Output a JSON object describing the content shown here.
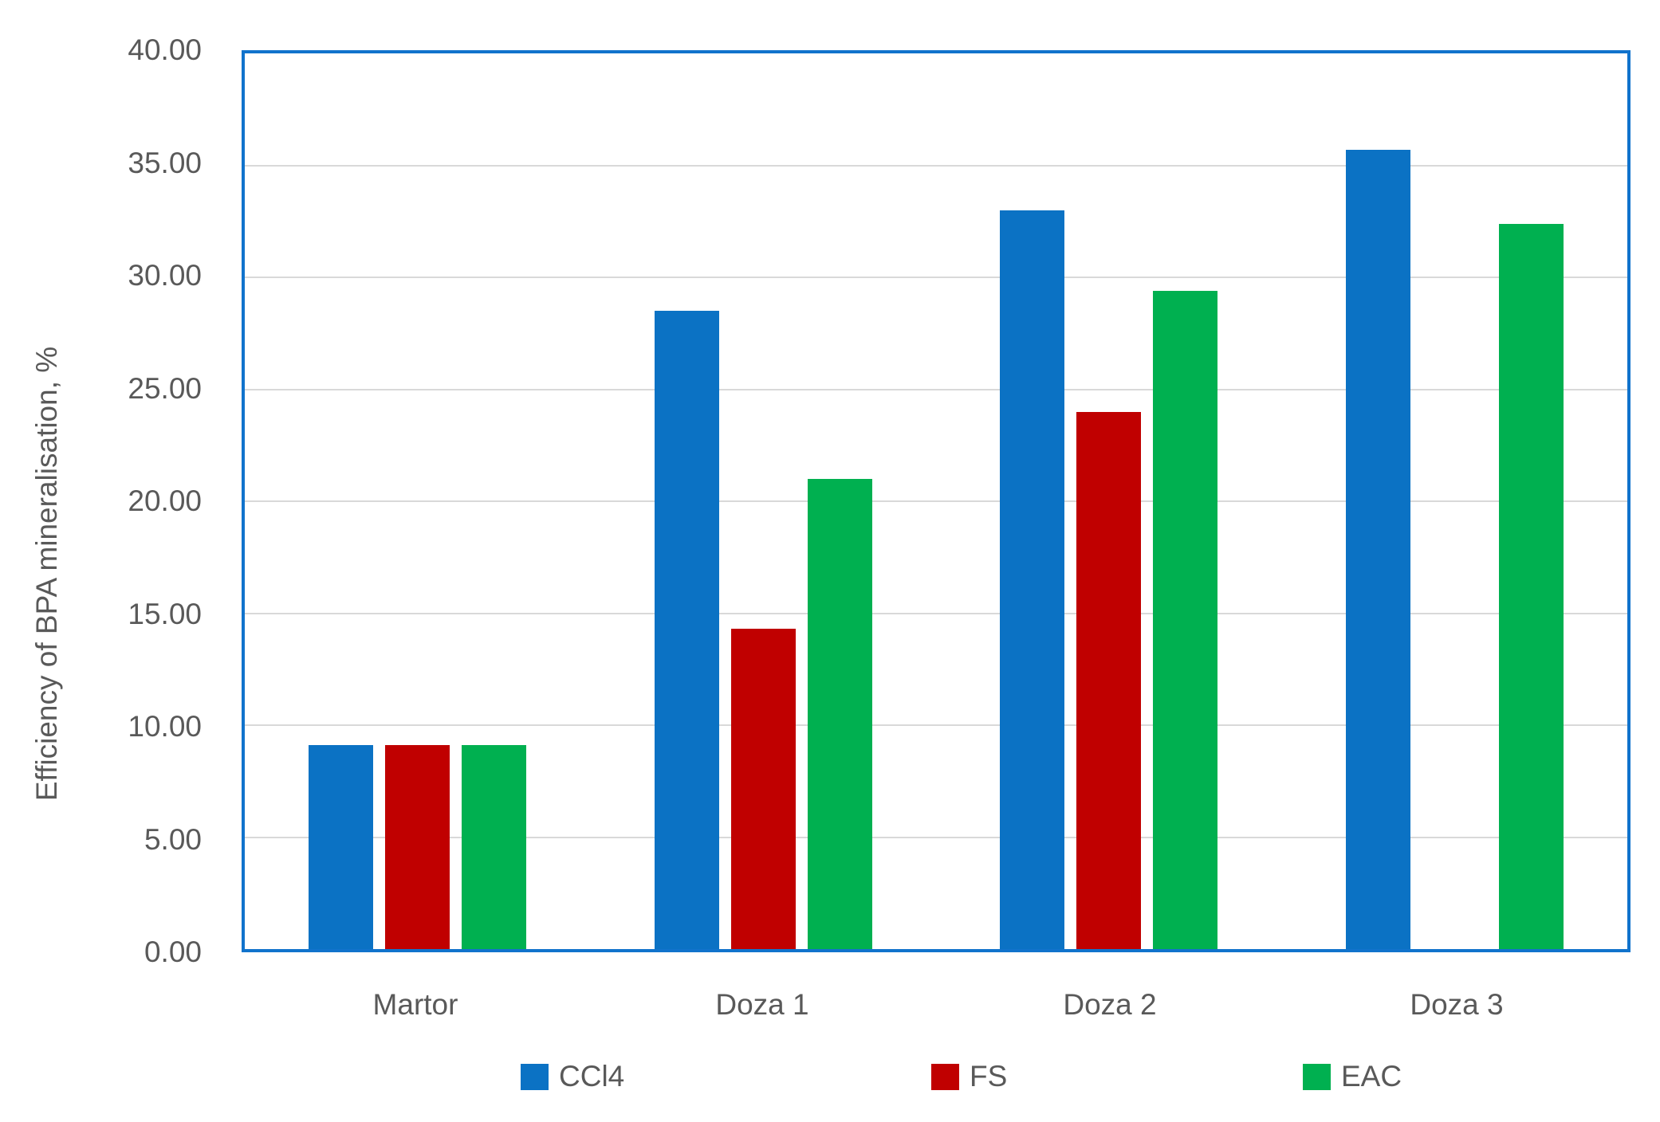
{
  "chart_data": {
    "type": "bar",
    "title": "",
    "xlabel": "",
    "ylabel": "Efficiency of BPA mineralisation, %",
    "categories": [
      "Martor",
      "Doza 1",
      "Doza 2",
      "Doza 3"
    ],
    "series": [
      {
        "name": "CCl4",
        "color": "#0B72C4",
        "values": [
          9.1,
          28.5,
          33.0,
          35.7
        ]
      },
      {
        "name": "FS",
        "color": "#C00000",
        "values": [
          9.1,
          14.3,
          24.0,
          null
        ]
      },
      {
        "name": "EAC",
        "color": "#00B050",
        "values": [
          9.1,
          21.0,
          29.4,
          32.4
        ]
      }
    ],
    "ylim": [
      0,
      40
    ],
    "ytick_step": 5,
    "ytick_labels": [
      "0.00",
      "5.00",
      "10.00",
      "15.00",
      "20.00",
      "25.00",
      "30.00",
      "35.00",
      "40.00"
    ],
    "grid": true,
    "legend_position": "bottom"
  },
  "colors": {
    "plot_border": "#1173CC",
    "gridline": "#D9D9D9",
    "text": "#595959",
    "background": "#FFFFFF"
  },
  "layout_labels": {
    "y_axis_title": "Efficiency of BPA mineralisation, %"
  }
}
